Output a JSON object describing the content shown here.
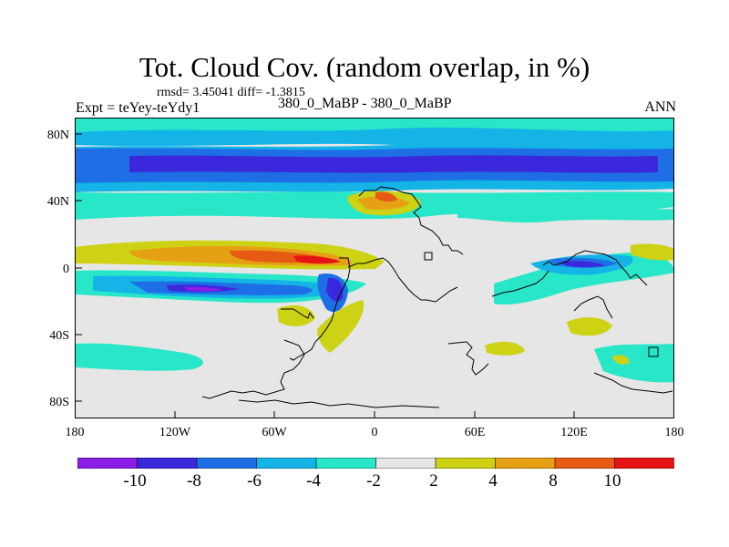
{
  "title": "Tot. Cloud Cov. (random overlap, in %)",
  "stats": "rmsd= 3.45041 diff= -1.3815",
  "expt_label": "Expt = teYey-teYdy1",
  "case_label": "380_0_MaBP - 380_0_MaBP",
  "season": "ANN",
  "map": {
    "lat_ticks": [
      "80N",
      "40N",
      "0",
      "40S",
      "80S"
    ],
    "lon_ticks": [
      "180",
      "120W",
      "60W",
      "0",
      "60E",
      "120E",
      "180"
    ],
    "background_color": "#e6e6e6",
    "features": [
      "Positive cloud cover difference along equatorial belt from 180 to 40W",
      "Negative band 20S across Pacific",
      "Strong negative band near 55N",
      "Continental outlines of paleo-geography"
    ]
  },
  "colorbar": {
    "levels": [
      "-10",
      "-8",
      "-6",
      "-4",
      "-2",
      "2",
      "4",
      "8",
      "10"
    ],
    "colors": [
      "#8a1ee6",
      "#3c28dc",
      "#1e6ee6",
      "#14b4e6",
      "#28e6c8",
      "#e6e6e6",
      "#cdd214",
      "#e6a014",
      "#e65a14",
      "#e61414"
    ]
  }
}
